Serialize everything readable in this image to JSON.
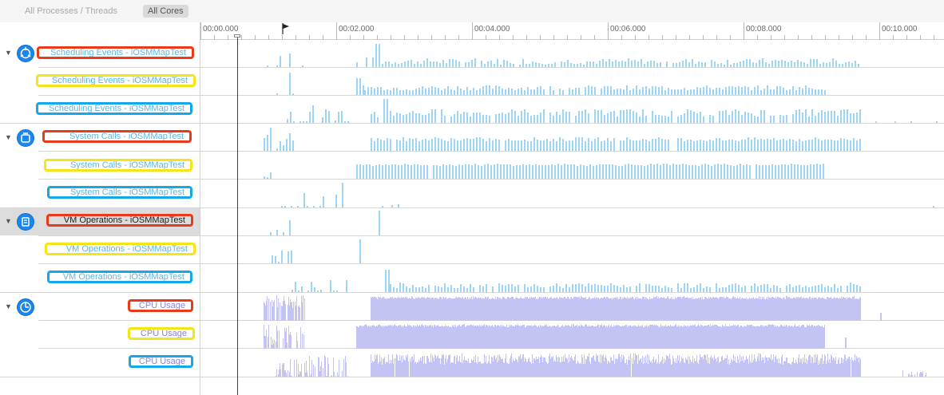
{
  "scope_bar": {
    "all_processes_label": "All Processes / Threads",
    "all_cores_label": "All Cores"
  },
  "ruler": {
    "ticks": [
      "00:00.000",
      "00:02.000",
      "00:04.000",
      "00:06.000",
      "00:08.000",
      "00:10.000"
    ]
  },
  "instruments": [
    {
      "name": "scheduling-events",
      "icon": "scheduling-events-icon",
      "tracks": [
        {
          "label": "Scheduling Events - iOSMMapTest",
          "box": "red",
          "color": "blue"
        },
        {
          "label": "Scheduling Events - iOSMMapTest",
          "box": "yellow",
          "color": "blue"
        },
        {
          "label": "Scheduling Events - iOSMMapTest",
          "box": "blue",
          "color": "blue"
        }
      ]
    },
    {
      "name": "system-calls",
      "icon": "system-calls-icon",
      "tracks": [
        {
          "label": "System Calls - iOSMMapTest",
          "box": "red",
          "color": "blue"
        },
        {
          "label": "System Calls - iOSMMapTest",
          "box": "yellow",
          "color": "blue"
        },
        {
          "label": "System Calls - iOSMMapTest",
          "box": "blue",
          "color": "blue"
        }
      ]
    },
    {
      "name": "vm-operations",
      "icon": "vm-operations-icon",
      "tracks": [
        {
          "label": "VM Operations - iOSMMapTest",
          "box": "red",
          "color": "dark"
        },
        {
          "label": "VM Operations - iOSMMapTest",
          "box": "yellow",
          "color": "blue"
        },
        {
          "label": "VM Operations - iOSMMapTest",
          "box": "blue",
          "color": "blue"
        }
      ]
    },
    {
      "name": "cpu-usage",
      "icon": "cpu-usage-icon",
      "tracks": [
        {
          "label": "CPU Usage",
          "box": "red",
          "color": "purple"
        },
        {
          "label": "CPU Usage",
          "box": "yellow",
          "color": "purple"
        },
        {
          "label": "CPU Usage",
          "box": "blue",
          "color": "purple"
        }
      ]
    }
  ],
  "colors": {
    "red_box": "#ea3a1c",
    "yellow_box": "#f5e418",
    "blue_box": "#14a8ea",
    "event_bars": "#9dd5f5",
    "cpu_fill": "#c4c4f4",
    "playhead": "#2b35b8",
    "instrument_icon": "#1a86ef"
  }
}
